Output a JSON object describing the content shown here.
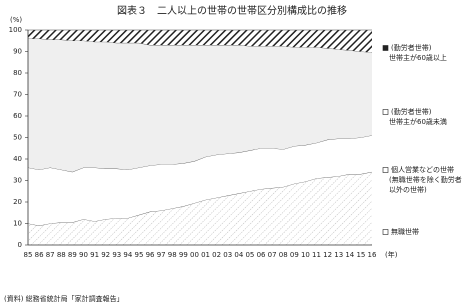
{
  "chart_data": {
    "type": "stacked-area",
    "title": "図表３　二人以上の世帯の世帯区分別構成比の推移",
    "source": "(資料) 総務省統計局「家計調査報告」",
    "y_label": "(%)",
    "x_label": "(年)",
    "categories": [
      "85",
      "86",
      "87",
      "88",
      "89",
      "90",
      "91",
      "92",
      "93",
      "94",
      "95",
      "96",
      "97",
      "98",
      "99",
      "00",
      "01",
      "02",
      "03",
      "04",
      "05",
      "06",
      "07",
      "08",
      "09",
      "10",
      "11",
      "12",
      "13",
      "14",
      "15",
      "16"
    ],
    "ylim": [
      0,
      100
    ],
    "yticks": [
      0,
      10,
      20,
      30,
      40,
      50,
      60,
      70,
      80,
      90,
      100
    ],
    "series": [
      {
        "name": [
          "無職世帯"
        ],
        "color": "#9a9a9a",
        "hatch": "sparse",
        "values": [
          10,
          9,
          10,
          10.5,
          10.5,
          12,
          11,
          12,
          12.5,
          12.5,
          14,
          15.5,
          16,
          17,
          18,
          19.5,
          21,
          22,
          23,
          24,
          25,
          26,
          26.5,
          27,
          28.5,
          29.5,
          31,
          31.5,
          32,
          33,
          33,
          34
        ]
      },
      {
        "name": [
          "個人営業などの世帯",
          "(無職世帯を除く勤労者",
          "以外の世帯)"
        ],
        "color": "#ffffff",
        "values": [
          26,
          26,
          26,
          24.5,
          23.5,
          24,
          25,
          23.5,
          23,
          22.5,
          22,
          21.5,
          21.5,
          20.5,
          20,
          19.5,
          20,
          20,
          19.5,
          19,
          19,
          19,
          18.5,
          17.5,
          17.5,
          17,
          16.5,
          17.5,
          17.5,
          16.5,
          17,
          17
        ]
      },
      {
        "name": [
          "(勤労者世帯)",
          "世帯主が60歳未満"
        ],
        "color": "#efefef",
        "values": [
          60,
          61,
          59.5,
          60.5,
          61,
          59,
          58.5,
          59,
          58.5,
          59,
          58,
          56,
          55.5,
          55.5,
          55,
          54,
          52,
          51,
          50.5,
          50,
          48.5,
          47.5,
          47.5,
          48,
          46,
          45.5,
          44.5,
          42.5,
          41.5,
          41,
          40,
          38.5
        ]
      },
      {
        "name": [
          "(勤労者世帯)",
          "世帯主が60歳以上"
        ],
        "color": "#222222",
        "hatch": "dense",
        "values": [
          4,
          4,
          4.5,
          4.5,
          5,
          5,
          5.5,
          5.5,
          6,
          6,
          6,
          7,
          7,
          7,
          7,
          7,
          7,
          7,
          7,
          7,
          7.5,
          7.5,
          7.5,
          7.5,
          8,
          8,
          8,
          8.5,
          9,
          9.5,
          10,
          10.5
        ]
      }
    ]
  }
}
